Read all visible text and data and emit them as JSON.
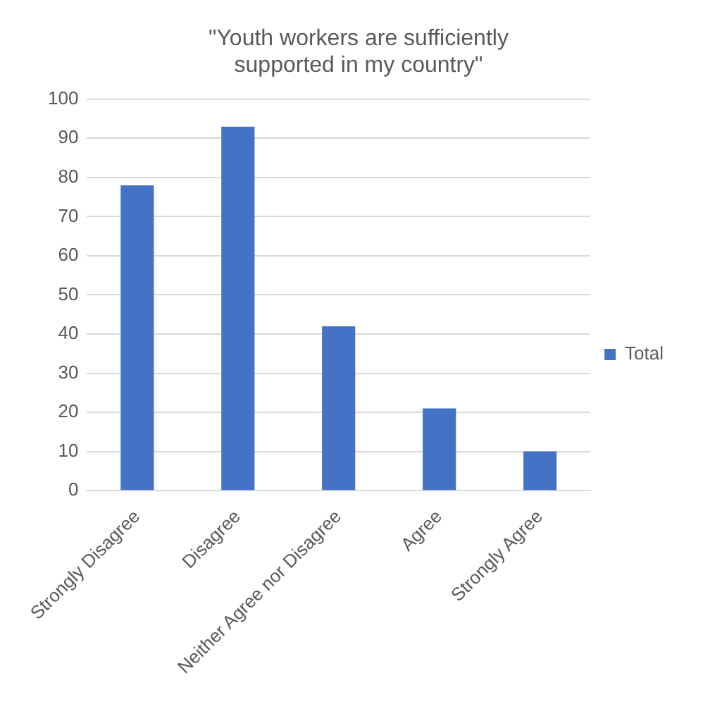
{
  "chart_data": {
    "type": "bar",
    "title": [
      "\"Youth workers are sufficiently",
      "supported in my country\""
    ],
    "categories": [
      "Strongly Disagree",
      "Disagree",
      "Neither Agree nor Disagree",
      "Agree",
      "Strongly Agree"
    ],
    "series": [
      {
        "name": "Total",
        "color": "#4472c4",
        "values": [
          78,
          93,
          42,
          21,
          10
        ]
      }
    ],
    "ylim": [
      0,
      100
    ],
    "yticks": [
      0,
      10,
      20,
      30,
      40,
      50,
      60,
      70,
      80,
      90,
      100
    ],
    "grid": "y",
    "legend": "right"
  }
}
